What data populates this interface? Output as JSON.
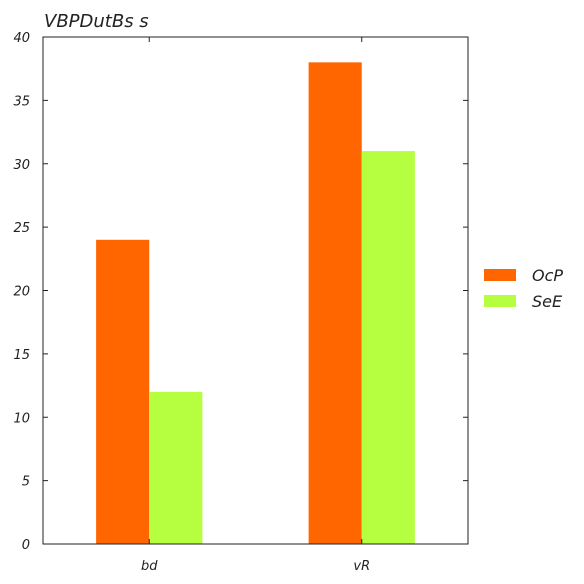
{
  "chart_data": {
    "type": "bar",
    "title": "VBPDutBs s",
    "xlabel": "",
    "ylabel": "",
    "categories": [
      "bd",
      "vR"
    ],
    "series": [
      {
        "name": "OcP",
        "values": [
          24,
          38
        ],
        "color": "#ff6600"
      },
      {
        "name": "SeE",
        "values": [
          12,
          31
        ],
        "color": "#b6ff40"
      }
    ],
    "ylim": [
      0,
      40
    ],
    "yticks": [
      0,
      5,
      10,
      15,
      20,
      25,
      30,
      35,
      40
    ],
    "grid": false,
    "legend_position": "right"
  }
}
